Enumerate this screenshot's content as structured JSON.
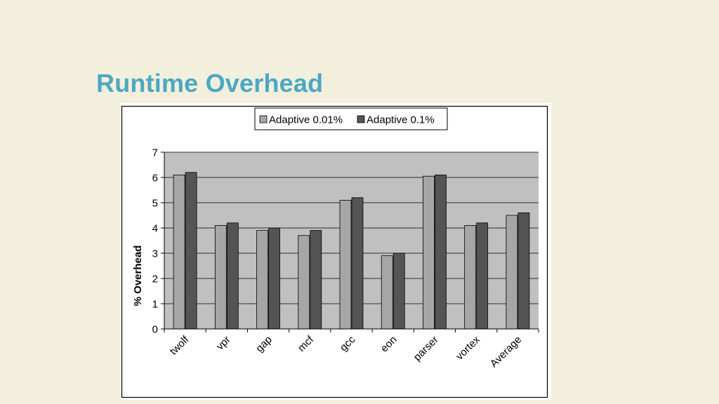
{
  "slide": {
    "title": "Runtime Overhead"
  },
  "chart_data": {
    "type": "bar",
    "title": "",
    "xlabel": "",
    "ylabel": "% Overhead",
    "ylim": [
      0,
      7
    ],
    "yticks": [
      0,
      1,
      2,
      3,
      4,
      5,
      6,
      7
    ],
    "grid": true,
    "legend_position": "top-center",
    "categories": [
      "twolf",
      "vpr",
      "gap",
      "mcf",
      "gcc",
      "eon",
      "parser",
      "vortex",
      "Average"
    ],
    "series": [
      {
        "name": "Adaptive 0.01%",
        "color": "#a6a6a6",
        "values": [
          6.1,
          4.1,
          3.9,
          3.7,
          5.1,
          2.9,
          6.05,
          4.1,
          4.5
        ]
      },
      {
        "name": "Adaptive 0.1%",
        "color": "#545454",
        "values": [
          6.2,
          4.2,
          4.0,
          3.9,
          5.2,
          3.0,
          6.1,
          4.2,
          4.6
        ]
      }
    ],
    "colors": {
      "plot_background": "#c0c0c0",
      "gridline": "#000000"
    }
  }
}
